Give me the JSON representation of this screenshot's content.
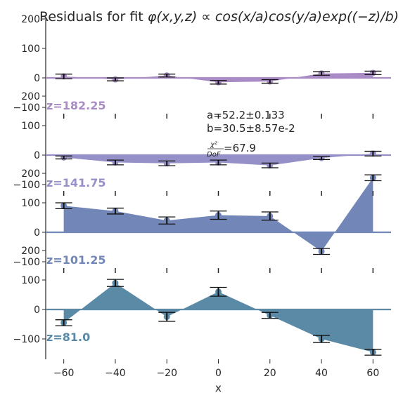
{
  "chart_data": {
    "type": "area",
    "title_main": "Residuals for fit ",
    "title_formula": "φ(x,y,z) ∝ cos(x/a)cos(y/a)exp((−z)/b)",
    "xlabel": "x",
    "xlim": [
      -67,
      67
    ],
    "x": [
      -60,
      -40,
      -20,
      0,
      20,
      40,
      60
    ],
    "x_ticks": [
      -60,
      -40,
      -20,
      0,
      20,
      40,
      60
    ],
    "x_tick_labels": [
      "−60",
      "−40",
      "−20",
      "0",
      "20",
      "40",
      "60"
    ],
    "y_ticks": [
      -100,
      0,
      100,
      200
    ],
    "y_tick_labels": [
      "−100",
      "0",
      "100",
      "200"
    ],
    "annotation": {
      "a": "a=52.2±0.133",
      "b": "b=30.5±8.57e-2",
      "chi_num": "χ²",
      "chi_den": "DoF",
      "chi_val": "=67.9"
    },
    "series": [
      {
        "name": "z=182.25",
        "color": "#a98bc6",
        "values": [
          5,
          -5,
          8,
          -15,
          -12,
          15,
          17
        ],
        "errors": [
          8,
          5,
          5,
          6,
          6,
          6,
          6
        ]
      },
      {
        "name": "z=141.75",
        "color": "#9590c8",
        "values": [
          -8,
          -25,
          -28,
          -25,
          -35,
          -10,
          5
        ],
        "errors": [
          5,
          8,
          8,
          8,
          8,
          5,
          8
        ]
      },
      {
        "name": "z=101.25",
        "color": "#7287b8",
        "values": [
          90,
          72,
          40,
          58,
          55,
          -65,
          185
        ],
        "errors": [
          10,
          10,
          12,
          14,
          14,
          10,
          10
        ]
      },
      {
        "name": "z=81.0",
        "color": "#5a8aa6",
        "values": [
          -45,
          90,
          -25,
          60,
          -20,
          -100,
          -145
        ],
        "errors": [
          10,
          12,
          15,
          15,
          10,
          12,
          10
        ]
      }
    ]
  }
}
